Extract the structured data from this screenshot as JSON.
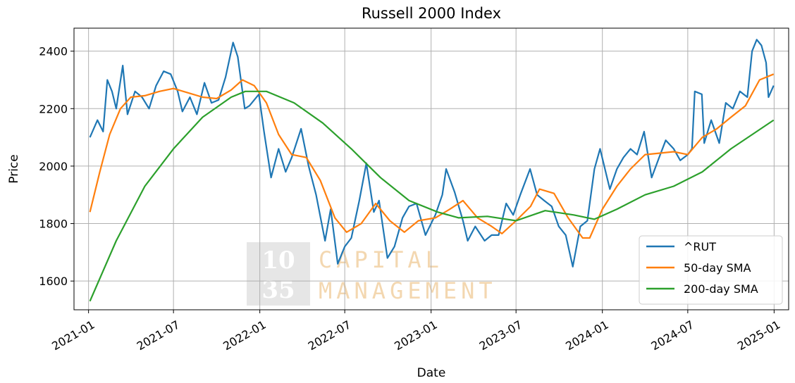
{
  "chart_data": {
    "type": "line",
    "title": "Russell 2000 Index",
    "xlabel": "Date",
    "ylabel": "Price",
    "xlim": [
      "2020-12-01",
      "2025-02-01"
    ],
    "ylim": [
      1500,
      2480
    ],
    "x_ticks": [
      "2021-01",
      "2021-07",
      "2022-01",
      "2022-07",
      "2023-01",
      "2023-07",
      "2024-01",
      "2024-07",
      "2025-01"
    ],
    "y_ticks": [
      1600,
      1800,
      2000,
      2200,
      2400
    ],
    "grid": true,
    "legend_position": "bottom-right",
    "watermark": {
      "number_top": "10",
      "number_bottom": "35",
      "line1": "CAPITAL",
      "line2": "MANAGEMENT"
    },
    "series": [
      {
        "name": "^RUT",
        "color": "#1f77b4",
        "points": [
          [
            "2021-01-04",
            2100
          ],
          [
            "2021-01-20",
            2160
          ],
          [
            "2021-02-01",
            2120
          ],
          [
            "2021-02-10",
            2300
          ],
          [
            "2021-02-20",
            2260
          ],
          [
            "2021-03-01",
            2200
          ],
          [
            "2021-03-15",
            2350
          ],
          [
            "2021-03-25",
            2180
          ],
          [
            "2021-04-10",
            2260
          ],
          [
            "2021-04-25",
            2240
          ],
          [
            "2021-05-10",
            2200
          ],
          [
            "2021-05-25",
            2280
          ],
          [
            "2021-06-10",
            2330
          ],
          [
            "2021-06-25",
            2320
          ],
          [
            "2021-07-10",
            2260
          ],
          [
            "2021-07-20",
            2190
          ],
          [
            "2021-08-05",
            2240
          ],
          [
            "2021-08-20",
            2180
          ],
          [
            "2021-09-05",
            2290
          ],
          [
            "2021-09-20",
            2220
          ],
          [
            "2021-10-05",
            2230
          ],
          [
            "2021-10-20",
            2310
          ],
          [
            "2021-11-05",
            2430
          ],
          [
            "2021-11-15",
            2380
          ],
          [
            "2021-11-30",
            2200
          ],
          [
            "2021-12-10",
            2210
          ],
          [
            "2021-12-30",
            2250
          ],
          [
            "2022-01-10",
            2120
          ],
          [
            "2022-01-25",
            1960
          ],
          [
            "2022-02-10",
            2060
          ],
          [
            "2022-02-25",
            1980
          ],
          [
            "2022-03-10",
            2030
          ],
          [
            "2022-03-30",
            2130
          ],
          [
            "2022-04-15",
            2000
          ],
          [
            "2022-05-01",
            1900
          ],
          [
            "2022-05-20",
            1740
          ],
          [
            "2022-06-01",
            1850
          ],
          [
            "2022-06-16",
            1660
          ],
          [
            "2022-07-01",
            1720
          ],
          [
            "2022-07-15",
            1750
          ],
          [
            "2022-08-01",
            1880
          ],
          [
            "2022-08-16",
            2010
          ],
          [
            "2022-09-01",
            1840
          ],
          [
            "2022-09-12",
            1880
          ],
          [
            "2022-09-30",
            1680
          ],
          [
            "2022-10-15",
            1720
          ],
          [
            "2022-11-01",
            1820
          ],
          [
            "2022-11-15",
            1860
          ],
          [
            "2022-12-01",
            1870
          ],
          [
            "2022-12-20",
            1760
          ],
          [
            "2023-01-10",
            1830
          ],
          [
            "2023-01-25",
            1900
          ],
          [
            "2023-02-02",
            1990
          ],
          [
            "2023-02-20",
            1910
          ],
          [
            "2023-03-10",
            1810
          ],
          [
            "2023-03-20",
            1740
          ],
          [
            "2023-04-05",
            1790
          ],
          [
            "2023-04-25",
            1740
          ],
          [
            "2023-05-10",
            1760
          ],
          [
            "2023-05-25",
            1760
          ],
          [
            "2023-06-10",
            1870
          ],
          [
            "2023-06-25",
            1830
          ],
          [
            "2023-07-10",
            1900
          ],
          [
            "2023-07-31",
            1990
          ],
          [
            "2023-08-15",
            1900
          ],
          [
            "2023-08-30",
            1880
          ],
          [
            "2023-09-15",
            1860
          ],
          [
            "2023-09-30",
            1790
          ],
          [
            "2023-10-15",
            1760
          ],
          [
            "2023-10-30",
            1650
          ],
          [
            "2023-11-15",
            1790
          ],
          [
            "2023-11-30",
            1810
          ],
          [
            "2023-12-15",
            1990
          ],
          [
            "2023-12-27",
            2060
          ],
          [
            "2024-01-17",
            1920
          ],
          [
            "2024-02-01",
            1990
          ],
          [
            "2024-02-15",
            2030
          ],
          [
            "2024-03-01",
            2060
          ],
          [
            "2024-03-15",
            2040
          ],
          [
            "2024-03-30",
            2120
          ],
          [
            "2024-04-15",
            1960
          ],
          [
            "2024-05-01",
            2030
          ],
          [
            "2024-05-15",
            2090
          ],
          [
            "2024-06-01",
            2060
          ],
          [
            "2024-06-15",
            2020
          ],
          [
            "2024-07-01",
            2040
          ],
          [
            "2024-07-10",
            2060
          ],
          [
            "2024-07-16",
            2260
          ],
          [
            "2024-07-31",
            2250
          ],
          [
            "2024-08-05",
            2080
          ],
          [
            "2024-08-20",
            2160
          ],
          [
            "2024-09-06",
            2080
          ],
          [
            "2024-09-20",
            2220
          ],
          [
            "2024-10-05",
            2200
          ],
          [
            "2024-10-20",
            2260
          ],
          [
            "2024-11-05",
            2240
          ],
          [
            "2024-11-15",
            2400
          ],
          [
            "2024-11-25",
            2440
          ],
          [
            "2024-12-05",
            2420
          ],
          [
            "2024-12-15",
            2360
          ],
          [
            "2024-12-20",
            2240
          ],
          [
            "2024-12-31",
            2280
          ]
        ]
      },
      {
        "name": "50-day SMA",
        "color": "#ff7f0e",
        "points": [
          [
            "2021-01-04",
            1840
          ],
          [
            "2021-01-25",
            1980
          ],
          [
            "2021-02-15",
            2110
          ],
          [
            "2021-03-10",
            2200
          ],
          [
            "2021-04-01",
            2240
          ],
          [
            "2021-05-01",
            2245
          ],
          [
            "2021-06-01",
            2260
          ],
          [
            "2021-07-01",
            2270
          ],
          [
            "2021-08-01",
            2255
          ],
          [
            "2021-09-01",
            2240
          ],
          [
            "2021-10-01",
            2235
          ],
          [
            "2021-11-01",
            2265
          ],
          [
            "2021-11-25",
            2300
          ],
          [
            "2021-12-20",
            2280
          ],
          [
            "2022-01-15",
            2220
          ],
          [
            "2022-02-10",
            2110
          ],
          [
            "2022-03-10",
            2040
          ],
          [
            "2022-04-10",
            2030
          ],
          [
            "2022-05-10",
            1950
          ],
          [
            "2022-06-10",
            1820
          ],
          [
            "2022-07-05",
            1770
          ],
          [
            "2022-08-05",
            1800
          ],
          [
            "2022-09-05",
            1870
          ],
          [
            "2022-10-05",
            1810
          ],
          [
            "2022-11-05",
            1770
          ],
          [
            "2022-12-05",
            1810
          ],
          [
            "2023-01-10",
            1820
          ],
          [
            "2023-02-10",
            1850
          ],
          [
            "2023-03-10",
            1880
          ],
          [
            "2023-04-10",
            1820
          ],
          [
            "2023-05-10",
            1790
          ],
          [
            "2023-06-01",
            1765
          ],
          [
            "2023-07-01",
            1810
          ],
          [
            "2023-08-01",
            1860
          ],
          [
            "2023-08-20",
            1920
          ],
          [
            "2023-09-20",
            1905
          ],
          [
            "2023-10-20",
            1820
          ],
          [
            "2023-11-20",
            1750
          ],
          [
            "2023-12-05",
            1750
          ],
          [
            "2024-01-01",
            1850
          ],
          [
            "2024-02-01",
            1930
          ],
          [
            "2024-03-01",
            1990
          ],
          [
            "2024-04-01",
            2040
          ],
          [
            "2024-05-01",
            2045
          ],
          [
            "2024-06-01",
            2050
          ],
          [
            "2024-07-01",
            2040
          ],
          [
            "2024-08-01",
            2100
          ],
          [
            "2024-09-01",
            2130
          ],
          [
            "2024-10-01",
            2170
          ],
          [
            "2024-11-01",
            2210
          ],
          [
            "2024-12-01",
            2300
          ],
          [
            "2024-12-31",
            2320
          ]
        ]
      },
      {
        "name": "200-day SMA",
        "color": "#2ca02c",
        "points": [
          [
            "2021-01-04",
            1530
          ],
          [
            "2021-03-01",
            1740
          ],
          [
            "2021-05-01",
            1930
          ],
          [
            "2021-07-01",
            2060
          ],
          [
            "2021-09-01",
            2170
          ],
          [
            "2021-11-01",
            2240
          ],
          [
            "2021-12-01",
            2260
          ],
          [
            "2022-01-15",
            2260
          ],
          [
            "2022-03-15",
            2220
          ],
          [
            "2022-05-15",
            2150
          ],
          [
            "2022-07-15",
            2060
          ],
          [
            "2022-09-15",
            1960
          ],
          [
            "2022-11-15",
            1880
          ],
          [
            "2023-01-15",
            1840
          ],
          [
            "2023-03-01",
            1820
          ],
          [
            "2023-05-01",
            1825
          ],
          [
            "2023-07-01",
            1810
          ],
          [
            "2023-09-01",
            1845
          ],
          [
            "2023-11-01",
            1830
          ],
          [
            "2023-12-15",
            1815
          ],
          [
            "2024-02-01",
            1850
          ],
          [
            "2024-04-01",
            1900
          ],
          [
            "2024-06-01",
            1930
          ],
          [
            "2024-08-01",
            1980
          ],
          [
            "2024-10-01",
            2060
          ],
          [
            "2024-12-31",
            2160
          ]
        ]
      }
    ]
  }
}
